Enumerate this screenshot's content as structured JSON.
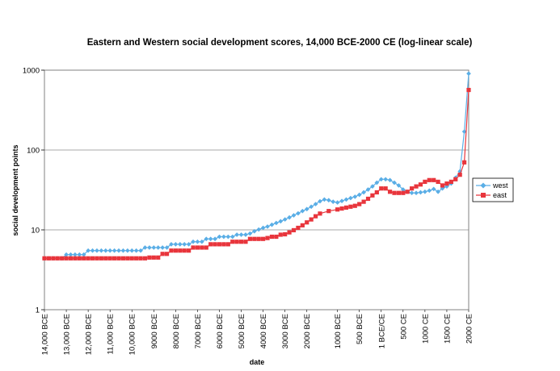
{
  "chart_data": {
    "type": "line",
    "title": "Eastern and Western social development scores, 14,000 BCE-2000 CE (log-linear scale)",
    "xlabel": "date",
    "ylabel": "social development points",
    "y_scale": "log",
    "ylim": [
      1,
      1000
    ],
    "y_ticks": [
      "1",
      "10",
      "100",
      "1000"
    ],
    "x_tick_labels": [
      "14,000 BCE",
      "13,000 BCE",
      "12,000 BCE",
      "11,000 BCE",
      "10,000 BCE",
      "9000 BCE",
      "8000 BCE",
      "7000 BCE",
      "6000 BCE",
      "5000 BCE",
      "4000 BCE",
      "3000 BCE",
      "2000 BCE",
      "1000 BCE",
      "500 BCE",
      "1 BCE/CE",
      "500 CE",
      "1000 CE",
      "1500 CE",
      "2000 CE"
    ],
    "grid": "horizontal",
    "legend_position": "right",
    "series": [
      {
        "name": "west",
        "color": "#5aaee6",
        "marker": "diamond",
        "points": [
          [
            -14000,
            4.4
          ],
          [
            -13800,
            4.4
          ],
          [
            -13600,
            4.4
          ],
          [
            -13400,
            4.4
          ],
          [
            -13200,
            4.4
          ],
          [
            -13000,
            4.9
          ],
          [
            -12800,
            4.9
          ],
          [
            -12600,
            4.9
          ],
          [
            -12400,
            4.9
          ],
          [
            -12200,
            4.9
          ],
          [
            -12000,
            5.5
          ],
          [
            -11800,
            5.5
          ],
          [
            -11600,
            5.5
          ],
          [
            -11400,
            5.5
          ],
          [
            -11200,
            5.5
          ],
          [
            -11000,
            5.5
          ],
          [
            -10800,
            5.5
          ],
          [
            -10600,
            5.5
          ],
          [
            -10400,
            5.5
          ],
          [
            -10200,
            5.5
          ],
          [
            -10000,
            5.5
          ],
          [
            -9800,
            5.5
          ],
          [
            -9600,
            5.5
          ],
          [
            -9400,
            6.0
          ],
          [
            -9200,
            6.0
          ],
          [
            -9000,
            6.0
          ],
          [
            -8800,
            6.0
          ],
          [
            -8600,
            6.0
          ],
          [
            -8400,
            6.0
          ],
          [
            -8200,
            6.6
          ],
          [
            -8000,
            6.6
          ],
          [
            -7800,
            6.6
          ],
          [
            -7600,
            6.6
          ],
          [
            -7400,
            6.6
          ],
          [
            -7200,
            7.1
          ],
          [
            -7000,
            7.1
          ],
          [
            -6800,
            7.1
          ],
          [
            -6600,
            7.7
          ],
          [
            -6400,
            7.7
          ],
          [
            -6200,
            7.7
          ],
          [
            -6000,
            8.2
          ],
          [
            -5800,
            8.2
          ],
          [
            -5600,
            8.2
          ],
          [
            -5400,
            8.2
          ],
          [
            -5200,
            8.7
          ],
          [
            -5000,
            8.7
          ],
          [
            -4800,
            8.7
          ],
          [
            -4600,
            9.0
          ],
          [
            -4400,
            9.6
          ],
          [
            -4200,
            10.1
          ],
          [
            -4000,
            10.6
          ],
          [
            -3800,
            11.0
          ],
          [
            -3600,
            11.6
          ],
          [
            -3400,
            12.2
          ],
          [
            -3200,
            12.8
          ],
          [
            -3000,
            13.5
          ],
          [
            -2800,
            14.3
          ],
          [
            -2600,
            15.2
          ],
          [
            -2400,
            16.1
          ],
          [
            -2200,
            17.2
          ],
          [
            -2000,
            18.2
          ],
          [
            -1800,
            19.5
          ],
          [
            -1600,
            21.0
          ],
          [
            -1400,
            22.8
          ],
          [
            -1300,
            24.0
          ],
          [
            -1200,
            23.5
          ],
          [
            -1100,
            22.5
          ],
          [
            -1000,
            22.0
          ],
          [
            -900,
            23.0
          ],
          [
            -800,
            24.0
          ],
          [
            -700,
            25.0
          ],
          [
            -600,
            26.0
          ],
          [
            -500,
            27.5
          ],
          [
            -400,
            29.5
          ],
          [
            -300,
            32.0
          ],
          [
            -200,
            35.0
          ],
          [
            -100,
            39.0
          ],
          [
            0,
            43.0
          ],
          [
            100,
            43.0
          ],
          [
            200,
            42.0
          ],
          [
            300,
            39.0
          ],
          [
            400,
            36.0
          ],
          [
            500,
            32.0
          ],
          [
            600,
            30.0
          ],
          [
            700,
            29.0
          ],
          [
            800,
            29.0
          ],
          [
            900,
            29.5
          ],
          [
            1000,
            30.0
          ],
          [
            1100,
            31.0
          ],
          [
            1200,
            32.5
          ],
          [
            1300,
            30.0
          ],
          [
            1400,
            33.0
          ],
          [
            1500,
            35.0
          ],
          [
            1600,
            38.0
          ],
          [
            1700,
            45.0
          ],
          [
            1800,
            54.0
          ],
          [
            1900,
            170.0
          ],
          [
            2000,
            906.0
          ]
        ]
      },
      {
        "name": "east",
        "color": "#e8353c",
        "marker": "square",
        "points": [
          [
            -14000,
            4.4
          ],
          [
            -13800,
            4.4
          ],
          [
            -13600,
            4.4
          ],
          [
            -13400,
            4.4
          ],
          [
            -13200,
            4.4
          ],
          [
            -13000,
            4.4
          ],
          [
            -12800,
            4.4
          ],
          [
            -12600,
            4.4
          ],
          [
            -12400,
            4.4
          ],
          [
            -12200,
            4.4
          ],
          [
            -12000,
            4.4
          ],
          [
            -11800,
            4.4
          ],
          [
            -11600,
            4.4
          ],
          [
            -11400,
            4.4
          ],
          [
            -11200,
            4.4
          ],
          [
            -11000,
            4.4
          ],
          [
            -10800,
            4.4
          ],
          [
            -10600,
            4.4
          ],
          [
            -10400,
            4.4
          ],
          [
            -10200,
            4.4
          ],
          [
            -10000,
            4.4
          ],
          [
            -9800,
            4.4
          ],
          [
            -9600,
            4.4
          ],
          [
            -9400,
            4.4
          ],
          [
            -9200,
            4.5
          ],
          [
            -9000,
            4.5
          ],
          [
            -8800,
            4.5
          ],
          [
            -8600,
            5.0
          ],
          [
            -8400,
            5.0
          ],
          [
            -8200,
            5.5
          ],
          [
            -8000,
            5.5
          ],
          [
            -7800,
            5.5
          ],
          [
            -7600,
            5.5
          ],
          [
            -7400,
            5.5
          ],
          [
            -7200,
            6.0
          ],
          [
            -7000,
            6.0
          ],
          [
            -6800,
            6.0
          ],
          [
            -6600,
            6.0
          ],
          [
            -6400,
            6.6
          ],
          [
            -6200,
            6.6
          ],
          [
            -6000,
            6.6
          ],
          [
            -5800,
            6.6
          ],
          [
            -5600,
            6.6
          ],
          [
            -5400,
            7.1
          ],
          [
            -5200,
            7.1
          ],
          [
            -5000,
            7.1
          ],
          [
            -4800,
            7.1
          ],
          [
            -4600,
            7.7
          ],
          [
            -4400,
            7.7
          ],
          [
            -4200,
            7.7
          ],
          [
            -4000,
            7.7
          ],
          [
            -3800,
            7.9
          ],
          [
            -3600,
            8.2
          ],
          [
            -3400,
            8.2
          ],
          [
            -3200,
            8.7
          ],
          [
            -3000,
            8.8
          ],
          [
            -2800,
            9.3
          ],
          [
            -2600,
            9.9
          ],
          [
            -2400,
            10.6
          ],
          [
            -2200,
            11.4
          ],
          [
            -2000,
            12.4
          ],
          [
            -1800,
            13.5
          ],
          [
            -1600,
            14.8
          ],
          [
            -1400,
            16.0
          ],
          [
            -1200,
            17.2
          ],
          [
            -1000,
            18.0
          ],
          [
            -900,
            18.5
          ],
          [
            -800,
            19.0
          ],
          [
            -700,
            19.5
          ],
          [
            -600,
            20.0
          ],
          [
            -500,
            21.0
          ],
          [
            -400,
            22.5
          ],
          [
            -300,
            24.5
          ],
          [
            -200,
            27.0
          ],
          [
            -100,
            29.5
          ],
          [
            0,
            33.0
          ],
          [
            100,
            33.0
          ],
          [
            200,
            30.0
          ],
          [
            300,
            29.0
          ],
          [
            400,
            29.0
          ],
          [
            500,
            29.0
          ],
          [
            600,
            30.0
          ],
          [
            700,
            33.0
          ],
          [
            800,
            35.0
          ],
          [
            900,
            37.0
          ],
          [
            1000,
            40.0
          ],
          [
            1100,
            42.0
          ],
          [
            1200,
            42.0
          ],
          [
            1300,
            40.0
          ],
          [
            1400,
            36.0
          ],
          [
            1500,
            38.0
          ],
          [
            1600,
            40.0
          ],
          [
            1700,
            43.0
          ],
          [
            1800,
            49.0
          ],
          [
            1900,
            70.0
          ],
          [
            2000,
            565.0
          ]
        ]
      }
    ]
  }
}
